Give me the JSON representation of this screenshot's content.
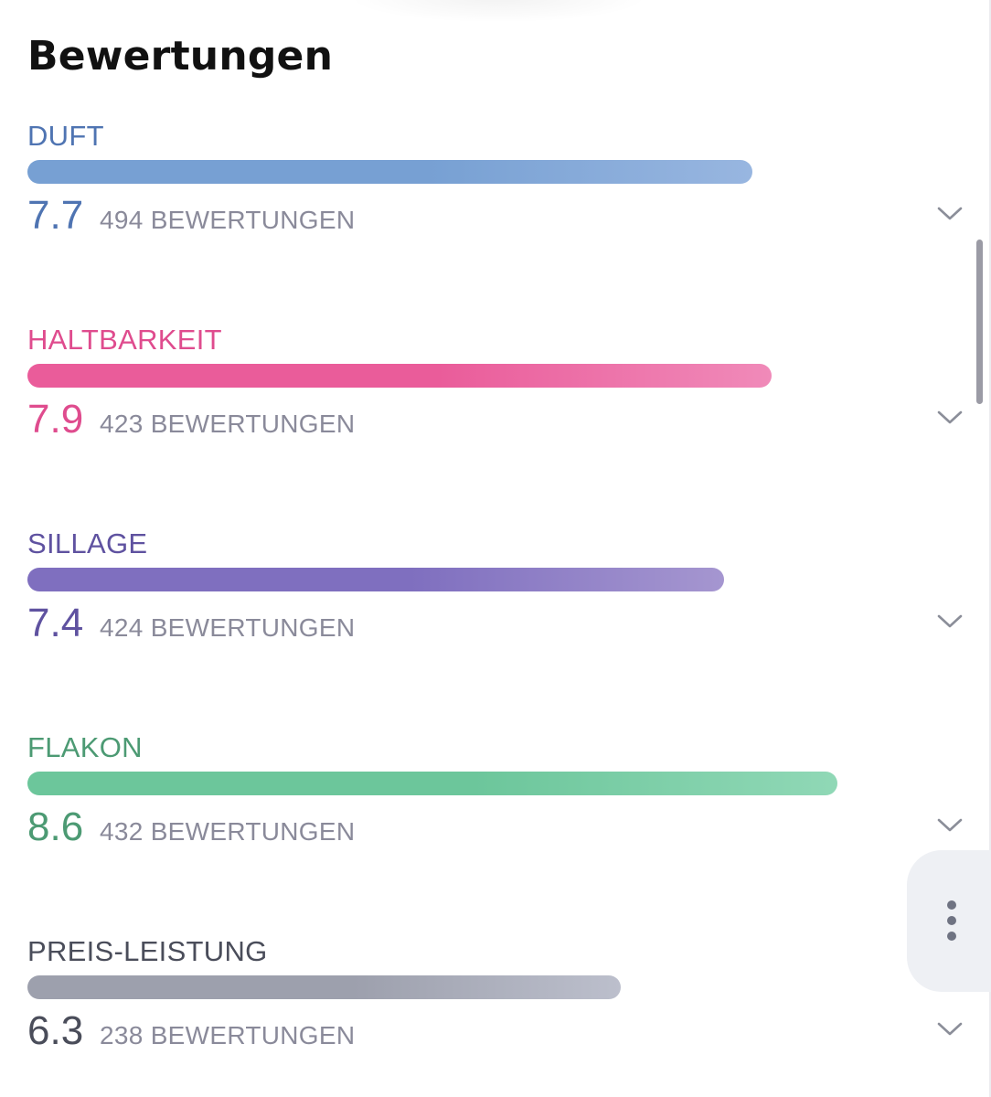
{
  "page": {
    "title": "Bewertungen"
  },
  "ratings": [
    {
      "label": "DUFT",
      "score": "7.7",
      "count": "494 BEWERTUNGEN",
      "fraction": 0.77,
      "color": "#4f74b2",
      "bar_from": "#77a0d3",
      "bar_to": "#98b6e0",
      "icon": "chevron-down-icon"
    },
    {
      "label": "HALTBARKEIT",
      "score": "7.9",
      "count": "423 BEWERTUNGEN",
      "fraction": 0.79,
      "color": "#df4c8e",
      "bar_from": "#ea5c9a",
      "bar_to": "#f08ab9",
      "icon": "chevron-down-icon"
    },
    {
      "label": "SILLAGE",
      "score": "7.4",
      "count": "424 BEWERTUNGEN",
      "fraction": 0.74,
      "color": "#5f52a0",
      "bar_from": "#7f6fbf",
      "bar_to": "#a596d0",
      "icon": "chevron-down-icon"
    },
    {
      "label": "FLAKON",
      "score": "8.6",
      "count": "432 BEWERTUNGEN",
      "fraction": 0.86,
      "color": "#4c9a73",
      "bar_from": "#6cc69b",
      "bar_to": "#90d8b6",
      "icon": "chevron-down-icon"
    },
    {
      "label": "PREIS-LEISTUNG",
      "score": "6.3",
      "count": "238 BEWERTUNGEN",
      "fraction": 0.63,
      "color": "#4a4d5a",
      "bar_from": "#9da0ad",
      "bar_to": "#bcbfcc",
      "icon": "chevron-down-icon"
    }
  ],
  "fab": {
    "icon": "more-vertical-icon"
  }
}
